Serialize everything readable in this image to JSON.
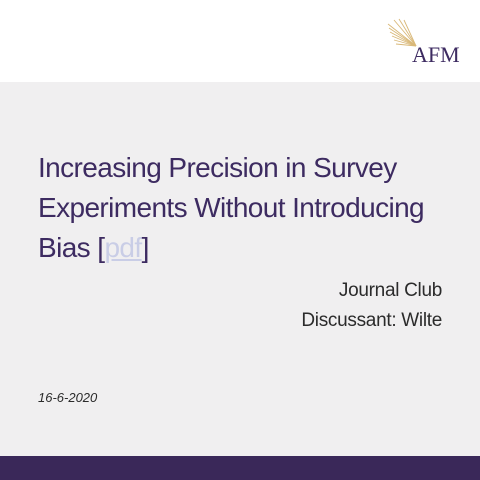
{
  "header": {
    "logo_text": "AFM",
    "logo_icon": "afm-rays-logo"
  },
  "slide": {
    "title_text": "Increasing Precision in Survey Experiments Without Introducing Bias [",
    "title_link": "pdf",
    "title_end": "]",
    "subtitle_line1": "Journal Club",
    "subtitle_line2": "Discussant: Wilte",
    "date": "16-6-2020"
  },
  "colors": {
    "title": "#3d2b61",
    "footer_bar": "#3a2859",
    "slide_background": "#f0eff0",
    "link": "#c9cde6",
    "logo_gold": "#d9b878"
  }
}
